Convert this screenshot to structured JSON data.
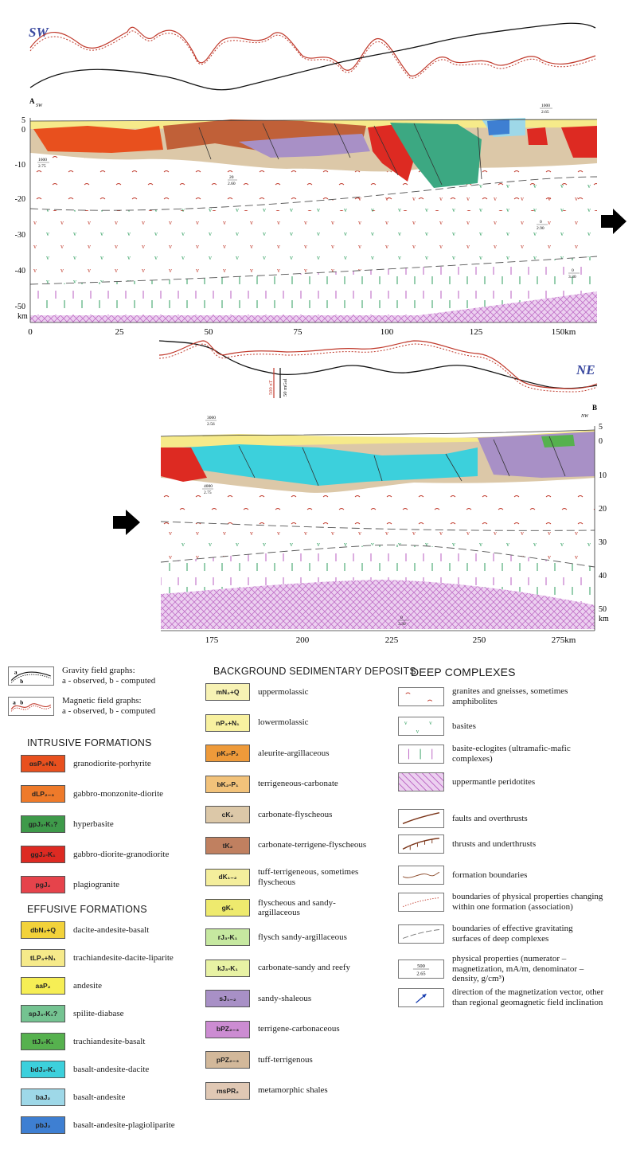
{
  "profile": {
    "dir_sw": "SW",
    "dir_ne": "NE",
    "label_a": "A",
    "label_a_sub": "SW",
    "label_b": "B",
    "label_b_sub": "NW",
    "scale_bar_label_1": "500 nT",
    "scale_bar_label_2": "50 mGal",
    "km_unit": "km",
    "depth_ticks_top": [
      "5",
      "0",
      "-10",
      "-20",
      "-30",
      "-40",
      "-50"
    ],
    "depth_ticks_bottom": [
      "5",
      "0",
      "10",
      "20",
      "30",
      "40",
      "50"
    ],
    "x_ticks_top": [
      "0",
      "25",
      "50",
      "75",
      "100",
      "125",
      "150km"
    ],
    "x_ticks_bottom": [
      "175",
      "200",
      "225",
      "250",
      "275km"
    ],
    "sample_props": [
      {
        "num": "1600",
        "den": "2.75"
      },
      {
        "num": "4000",
        "den": "2.75"
      },
      {
        "num": "3000",
        "den": "2.56"
      },
      {
        "num": "20",
        "den": "2.60"
      },
      {
        "num": "0",
        "den": "2.90"
      },
      {
        "num": "0",
        "den": "3.30"
      },
      {
        "num": "0",
        "den": "3.30"
      },
      {
        "num": "1000",
        "den": "2.65"
      }
    ]
  },
  "legend": {
    "gravity": {
      "title": "Gravity field graphs:",
      "sub": "a - observed, b - computed",
      "a": "a",
      "b": "b"
    },
    "magnetic": {
      "title": "Magnetic field graphs:",
      "sub": "a - observed, b - computed",
      "a": "a",
      "b": "b"
    },
    "intrusive": {
      "title": "INTRUSIVE FORMATIONS",
      "items": [
        {
          "code": "αsP₃+N₁",
          "label": "granodiorite-porhyrite",
          "color": "#e8501e"
        },
        {
          "code": "dLP₂₋₃",
          "label": "gabbro-monzonite-diorite",
          "color": "#ee7a2a"
        },
        {
          "code": "gpJ₂-K₁?",
          "label": "hyperbasite",
          "color": "#3e9a4a"
        },
        {
          "code": "ggJ₂-K₁",
          "label": "gabbro-diorite-granodiorite",
          "color": "#dd2a22"
        },
        {
          "code": "pgJ₂",
          "label": "plagiogranite",
          "color": "#e6434b"
        }
      ]
    },
    "effusive": {
      "title": "EFFUSIVE FORMATIONS",
      "items": [
        {
          "code": "dbN₂+Q",
          "label": "dacite-andesite-basalt",
          "color": "#f2d23a"
        },
        {
          "code": "tLP₃+N₁",
          "label": "trachiandesite-dacite-liparite",
          "color": "#f6ea8a"
        },
        {
          "code": "aaP₂",
          "label": "andesite",
          "color": "#f6ee55"
        },
        {
          "code": "spJ₃-K₁?",
          "label": "spilite-diabase",
          "color": "#74c391"
        },
        {
          "code": "ttJ₃-K₁",
          "label": "trachiandesite-basalt",
          "color": "#56b14e"
        },
        {
          "code": "bdJ₃-K₁",
          "label": "basalt-andesite-dacite",
          "color": "#3cd0dc"
        },
        {
          "code": "baJ₂",
          "label": "basalt-andesite",
          "color": "#9ed8e8"
        },
        {
          "code": "pbJ₂",
          "label": "basalt-andesite-plagioliparite",
          "color": "#3e7fd2"
        }
      ]
    },
    "background": {
      "title": "BACKGROUND SEDIMENTARY DEPOSITS",
      "items": [
        {
          "code": "mN₂+Q",
          "label": "uppermolassic",
          "color": "#f7f2b4"
        },
        {
          "code": "nP₃+N₁",
          "label": "lowermolassic",
          "color": "#f8f1a0"
        },
        {
          "code": "pK₂-P₂",
          "label": "aleurite-argillaceous",
          "color": "#ee9a3a"
        },
        {
          "code": "bK₂-P₁",
          "label": "terrigeneous-carbonate",
          "color": "#f2c27a"
        },
        {
          "code": "cK₂",
          "label": "carbonate-flyscheous",
          "color": "#dcc8a8"
        },
        {
          "code": "tK₂",
          "label": "carbonate-terrigene-flyscheous",
          "color": "#c08060"
        },
        {
          "code": "dK₁₋₂",
          "label": "tuff-terrigeneous, sometimes flyscheous",
          "color": "#f4ee9c"
        },
        {
          "code": "gK₁",
          "label": "flyscheous and sandy-argillaceous",
          "color": "#eeea6e"
        },
        {
          "code": "rJ₃-K₁",
          "label": "flysch sandy-argillaceous",
          "color": "#c6e8a0"
        },
        {
          "code": "kJ₃-K₁",
          "label": "carbonate-sandy and reefy",
          "color": "#e8f2a4"
        },
        {
          "code": "sJ₁₋₂",
          "label": "sandy-shaleous",
          "color": "#a890c6"
        },
        {
          "code": "bPZ₂₋₃",
          "label": "terrigene-carbonaceous",
          "color": "#cc8cd2"
        },
        {
          "code": "pPZ₂₋₃",
          "label": "tuff-terrigenous",
          "color": "#d2b89a"
        },
        {
          "code": "msPR₂",
          "label": "metamorphic shales",
          "color": "#e0c8b4"
        }
      ]
    },
    "deep": {
      "title": "DEEP COMPLEXES",
      "items": [
        {
          "label": "granites and gneisses, sometimes amphibolites"
        },
        {
          "label": "basites"
        },
        {
          "label": "basite-eclogites (ultramafic-mafic complexes)"
        },
        {
          "label": "uppermantle peridotites"
        }
      ]
    },
    "lines": {
      "items": [
        {
          "label": "faults and overthrusts"
        },
        {
          "label": "thrusts and underthrusts"
        },
        {
          "label": "formation boundaries"
        },
        {
          "label": "boundaries of physical properties changing within one formation (association)"
        },
        {
          "label": "boundaries of effective gravitating surfaces of deep complexes"
        },
        {
          "label": "physical properties (numerator – magnetization, mA/m, denominator – density, g/cm³)"
        },
        {
          "label": "direction of the magnetization vector, other than regional geomagnetic field inclination"
        }
      ],
      "sample_num": "500",
      "sample_den": "2.65"
    },
    "colors": {
      "granite_mark": "#c0392b",
      "basite_mark": "#2e9e5e",
      "eclogite_mark": "#b85cc0",
      "peridotite": "#e2b6e6",
      "gravity_line": "#111111",
      "magnetic_line": "#c0392b"
    }
  }
}
